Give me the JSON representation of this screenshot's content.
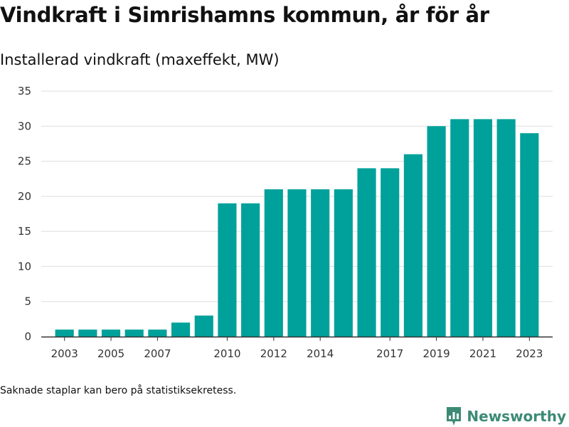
{
  "title": "Vindkraft i Simrishamns kommun, år för år",
  "subtitle": "Installerad vindkraft (maxeffekt, MW)",
  "footnote": "Saknade staplar kan bero på statistiksekretess.",
  "brand": {
    "name": "Newsworthy",
    "color": "#3d8b74",
    "icon": "newsworthy-logo-icon"
  },
  "chart_data": {
    "type": "bar",
    "title": "Installerad vindkraft (maxeffekt, MW)",
    "xlabel": "",
    "ylabel": "",
    "ylim": [
      0,
      35
    ],
    "yticks": [
      0,
      5,
      10,
      15,
      20,
      25,
      30,
      35
    ],
    "xlim": [
      2002,
      2024
    ],
    "xticks": [
      "2003",
      "2005",
      "2007",
      "2010",
      "2012",
      "2014",
      "2017",
      "2019",
      "2021",
      "2023"
    ],
    "grid": true,
    "bar_color": "#00a19a",
    "categories": [
      "2003",
      "2004",
      "2005",
      "2006",
      "2007",
      "2008",
      "2009",
      "2010",
      "2011",
      "2012",
      "2013",
      "2014",
      "2015",
      "2016",
      "2017",
      "2018",
      "2019",
      "2020",
      "2021",
      "2022",
      "2023"
    ],
    "values": [
      1,
      1,
      1,
      1,
      1,
      2,
      3,
      19,
      19,
      21,
      21,
      21,
      21,
      24,
      24,
      26,
      30,
      31,
      31,
      31,
      29
    ]
  }
}
